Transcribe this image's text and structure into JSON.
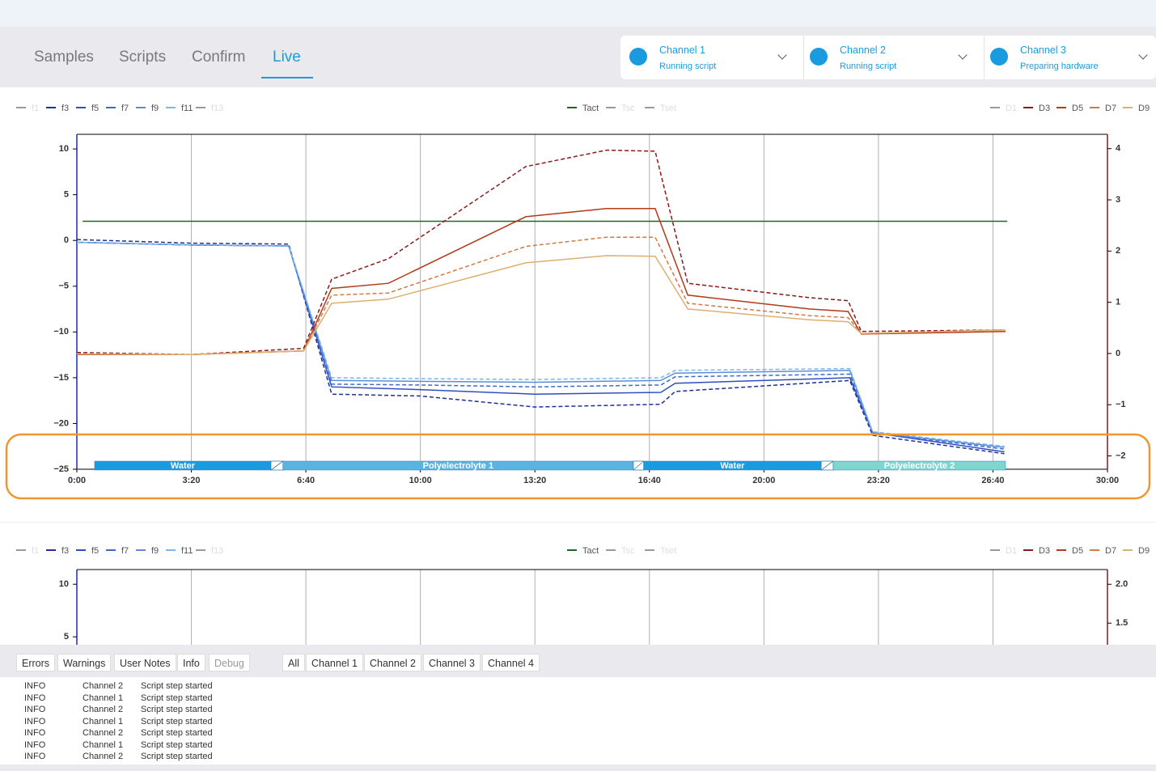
{
  "tabs": [
    "Samples",
    "Scripts",
    "Confirm",
    "Live"
  ],
  "active_tab": 3,
  "channels": [
    {
      "name": "Channel 1",
      "status": "Running script"
    },
    {
      "name": "Channel 2",
      "status": "Running script"
    },
    {
      "name": "Channel 3",
      "status": "Preparing hardware"
    }
  ],
  "charts": [
    {
      "type": "line",
      "x_axis_visible": true,
      "xlim": [
        0,
        1800
      ],
      "ylim": [
        -25,
        11.6
      ],
      "y2lim": [
        -2.26,
        4.28
      ],
      "xticks": [
        {
          "value": 0,
          "label": "0:00"
        },
        {
          "value": 200,
          "label": "3:20"
        },
        {
          "value": 400,
          "label": "6:40"
        },
        {
          "value": 600,
          "label": "10:00"
        },
        {
          "value": 800,
          "label": "13:20"
        },
        {
          "value": 1000,
          "label": "16:40"
        },
        {
          "value": 1200,
          "label": "20:00"
        },
        {
          "value": 1400,
          "label": "23:20"
        },
        {
          "value": 1600,
          "label": "26:40"
        },
        {
          "value": 1800,
          "label": "30:00"
        }
      ],
      "yticks": [
        10,
        5,
        0,
        {
          "value": -5,
          "label": "−5"
        },
        {
          "value": -10,
          "label": "−10"
        },
        {
          "value": -15,
          "label": "−15"
        },
        {
          "value": -20,
          "label": "−20"
        },
        {
          "value": -25,
          "label": "−25"
        }
      ],
      "y2ticks": [
        4,
        3,
        2,
        1,
        0,
        {
          "value": -1,
          "label": "−1"
        },
        {
          "value": -2,
          "label": "−2"
        }
      ],
      "series": [
        {
          "name": "f1",
          "group": "left",
          "color": "#9a9a9a",
          "enabled": false
        },
        {
          "name": "f3",
          "group": "left",
          "color": "#1f2f99",
          "enabled": true,
          "dash": true,
          "x": [
            0,
            200,
            370,
            445,
            600,
            800,
            1020,
            1045,
            1350,
            1390,
            1620
          ],
          "values": [
            0.1,
            -0.3,
            -0.4,
            -16.8,
            -17.0,
            -18.2,
            -17.9,
            -16.5,
            -15.3,
            -21.3,
            -23.3
          ]
        },
        {
          "name": "f5",
          "group": "left",
          "color": "#2f4fc0",
          "enabled": true,
          "dash": false,
          "x": [
            0,
            200,
            370,
            445,
            600,
            800,
            1020,
            1045,
            1350,
            1390,
            1620
          ],
          "values": [
            -0.2,
            -0.5,
            -0.6,
            -16.0,
            -16.3,
            -16.8,
            -16.6,
            -15.6,
            -15.0,
            -21.0,
            -23.1
          ]
        },
        {
          "name": "f7",
          "group": "left",
          "color": "#3c6ad0",
          "enabled": true,
          "dash": true,
          "x": [
            0,
            200,
            370,
            445,
            600,
            800,
            1020,
            1045,
            1350,
            1390,
            1620
          ],
          "values": [
            -0.2,
            -0.5,
            -0.6,
            -15.7,
            -15.8,
            -16.0,
            -15.8,
            -14.9,
            -14.6,
            -21.0,
            -22.8
          ]
        },
        {
          "name": "f9",
          "group": "left",
          "color": "#5a8fd8",
          "enabled": true,
          "dash": false,
          "x": [
            0,
            200,
            370,
            445,
            600,
            800,
            1020,
            1045,
            1350,
            1390,
            1620
          ],
          "values": [
            -0.2,
            -0.5,
            -0.6,
            -15.3,
            -15.4,
            -15.5,
            -15.3,
            -14.5,
            -14.2,
            -21.0,
            -22.6
          ]
        },
        {
          "name": "f11",
          "group": "left",
          "color": "#7ab6ea",
          "enabled": true,
          "dash": true,
          "x": [
            0,
            200,
            370,
            445,
            600,
            800,
            1020,
            1045,
            1350,
            1390,
            1620
          ],
          "values": [
            -0.2,
            -0.5,
            -0.6,
            -15.0,
            -15.1,
            -15.2,
            -15.0,
            -14.2,
            -14.0,
            -20.9,
            -22.5
          ]
        },
        {
          "name": "f13",
          "group": "left",
          "color": "#9a9a9a",
          "enabled": false
        },
        {
          "name": "Tact",
          "group": "center",
          "color": "#1a6b1a",
          "enabled": true,
          "dash": false,
          "x": [
            10,
            1625
          ],
          "values": [
            2.1,
            2.1
          ]
        },
        {
          "name": "Tsc",
          "group": "center",
          "color": "#9a9a9a",
          "enabled": false
        },
        {
          "name": "Tset",
          "group": "center",
          "color": "#9a9a9a",
          "enabled": false
        },
        {
          "name": "D1",
          "group": "right",
          "color": "#9a9a9a",
          "enabled": false
        },
        {
          "name": "D3",
          "group": "right",
          "axis": "y2",
          "color": "#8b1a1a",
          "enabled": true,
          "dash": true,
          "x": [
            0,
            200,
            396,
            445,
            544,
            784,
            925,
            1010,
            1067,
            1279,
            1347,
            1370,
            1622
          ],
          "values": [
            0.02,
            -0.02,
            0.1,
            1.45,
            1.85,
            3.65,
            3.97,
            3.95,
            1.37,
            1.09,
            1.03,
            0.43,
            0.46
          ]
        },
        {
          "name": "D5",
          "group": "right",
          "axis": "y2",
          "color": "#b43a1a",
          "enabled": true,
          "dash": false,
          "x": [
            0,
            200,
            396,
            445,
            544,
            784,
            925,
            1010,
            1067,
            1279,
            1347,
            1370,
            1622
          ],
          "values": [
            -0.02,
            -0.02,
            0.05,
            1.27,
            1.37,
            2.67,
            2.83,
            2.83,
            1.14,
            0.87,
            0.82,
            0.38,
            0.43
          ]
        },
        {
          "name": "D7",
          "group": "right",
          "axis": "y2",
          "color": "#d07a45",
          "enabled": true,
          "dash": true,
          "x": [
            0,
            200,
            396,
            445,
            544,
            784,
            925,
            1010,
            1067,
            1279,
            1347,
            1370,
            1622
          ],
          "values": [
            0.0,
            -0.02,
            0.05,
            1.14,
            1.18,
            2.09,
            2.27,
            2.27,
            0.98,
            0.74,
            0.7,
            0.39,
            0.46
          ]
        },
        {
          "name": "D9",
          "group": "right",
          "axis": "y2",
          "color": "#ddb070",
          "enabled": true,
          "dash": false,
          "x": [
            0,
            200,
            396,
            445,
            544,
            784,
            925,
            1010,
            1067,
            1279,
            1347,
            1370,
            1622
          ],
          "values": [
            -0.01,
            -0.02,
            0.05,
            0.98,
            1.06,
            1.77,
            1.91,
            1.9,
            0.87,
            0.66,
            0.62,
            0.39,
            0.46
          ]
        }
      ],
      "phases": [
        {
          "label": "Water",
          "start": 31,
          "end": 339,
          "color": "#1a9be0"
        },
        {
          "label": "Polyelectrolyte 1",
          "start": 360,
          "end": 972,
          "color": "#5ab4e0"
        },
        {
          "label": "Water",
          "start": 990,
          "end": 1300,
          "color": "#1a9be0"
        },
        {
          "label": "Polyelectrolyte 2",
          "start": 1321,
          "end": 1622,
          "color": "#7fd6cf"
        }
      ]
    },
    {
      "type": "line",
      "x_axis_visible": false,
      "xlim": [
        0,
        1800
      ],
      "ylim": [
        -20,
        11.4
      ],
      "y2lim": [
        -2.06,
        2.19
      ],
      "xticks": [
        200,
        400,
        600,
        800,
        1000,
        1200,
        1400,
        1600
      ],
      "yticks": [
        10,
        5
      ],
      "y2ticks": [
        {
          "value": 2,
          "label": "2.0"
        },
        1.5
      ],
      "series": [
        {
          "name": "f1",
          "group": "left",
          "color": "#9a9a9a",
          "enabled": false
        },
        {
          "name": "f3",
          "group": "left",
          "color": "#1f2f99",
          "enabled": true
        },
        {
          "name": "f5",
          "group": "left",
          "color": "#2f4fc0",
          "enabled": true
        },
        {
          "name": "f7",
          "group": "left",
          "color": "#3c6ad0",
          "enabled": true
        },
        {
          "name": "f9",
          "group": "left",
          "color": "#5a8fd8",
          "enabled": true
        },
        {
          "name": "f11",
          "group": "left",
          "color": "#7ab6ea",
          "enabled": true
        },
        {
          "name": "f13",
          "group": "left",
          "color": "#9a9a9a",
          "enabled": false
        },
        {
          "name": "Tact",
          "group": "center",
          "color": "#1a6b1a",
          "enabled": true
        },
        {
          "name": "Tsc",
          "group": "center",
          "color": "#9a9a9a",
          "enabled": false
        },
        {
          "name": "Tset",
          "group": "center",
          "color": "#9a9a9a",
          "enabled": false
        },
        {
          "name": "D1",
          "group": "right",
          "color": "#9a9a9a",
          "enabled": false
        },
        {
          "name": "D3",
          "group": "right",
          "color": "#8b1a1a",
          "enabled": true
        },
        {
          "name": "D5",
          "group": "right",
          "color": "#b43a1a",
          "enabled": true
        },
        {
          "name": "D7",
          "group": "right",
          "color": "#d07a45",
          "enabled": true
        },
        {
          "name": "D9",
          "group": "right",
          "color": "#ddb070",
          "enabled": true
        }
      ]
    }
  ],
  "log_filters": {
    "levels": [
      {
        "label": "Errors",
        "enabled": true
      },
      {
        "label": "Warnings",
        "enabled": true
      },
      {
        "label": "User Notes",
        "enabled": true
      },
      {
        "label": "Info",
        "enabled": true
      },
      {
        "label": "Debug",
        "enabled": false
      }
    ],
    "channels": [
      "All",
      "Channel 1",
      "Channel 2",
      "Channel 3",
      "Channel 4"
    ]
  },
  "log": [
    {
      "level": "INFO",
      "channel": "Channel 2",
      "message": "Script step started"
    },
    {
      "level": "INFO",
      "channel": "Channel 1",
      "message": "Script step started"
    },
    {
      "level": "INFO",
      "channel": "Channel 2",
      "message": "Script step started"
    },
    {
      "level": "INFO",
      "channel": "Channel 1",
      "message": "Script step started"
    },
    {
      "level": "INFO",
      "channel": "Channel 2",
      "message": "Script step started"
    },
    {
      "level": "INFO",
      "channel": "Channel 1",
      "message": "Script step started"
    },
    {
      "level": "INFO",
      "channel": "Channel 2",
      "message": "Script step started"
    }
  ]
}
